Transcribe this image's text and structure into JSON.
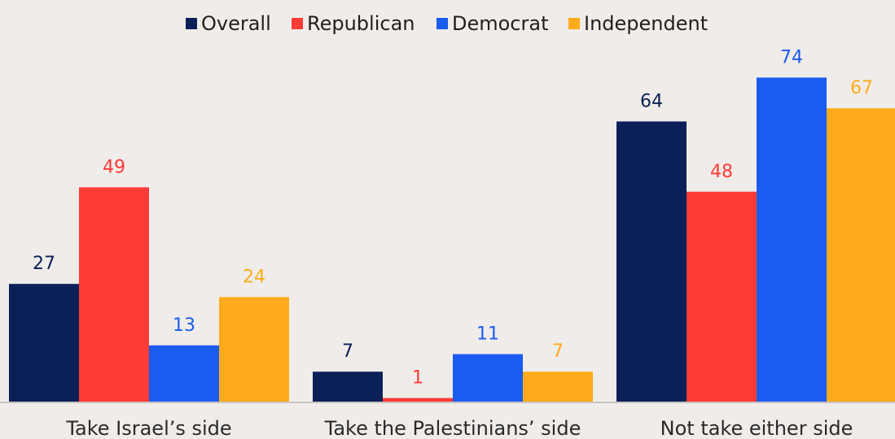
{
  "chart_data": {
    "type": "bar",
    "categories": [
      "Take Israel’s side",
      "Take the Palestinians’ side",
      "Not take either side"
    ],
    "series": [
      {
        "name": "Overall",
        "color": "#0b2058",
        "values": [
          27,
          7,
          64
        ]
      },
      {
        "name": "Republican",
        "color": "#ff3b36",
        "values": [
          49,
          1,
          48
        ]
      },
      {
        "name": "Democrat",
        "color": "#1a5cf0",
        "values": [
          13,
          11,
          74
        ]
      },
      {
        "name": "Independent",
        "color": "#fdab1b",
        "values": [
          24,
          7,
          67
        ]
      }
    ],
    "title": "",
    "xlabel": "",
    "ylabel": "",
    "ylim": [
      0,
      80
    ],
    "grid": false,
    "legend": "top"
  }
}
